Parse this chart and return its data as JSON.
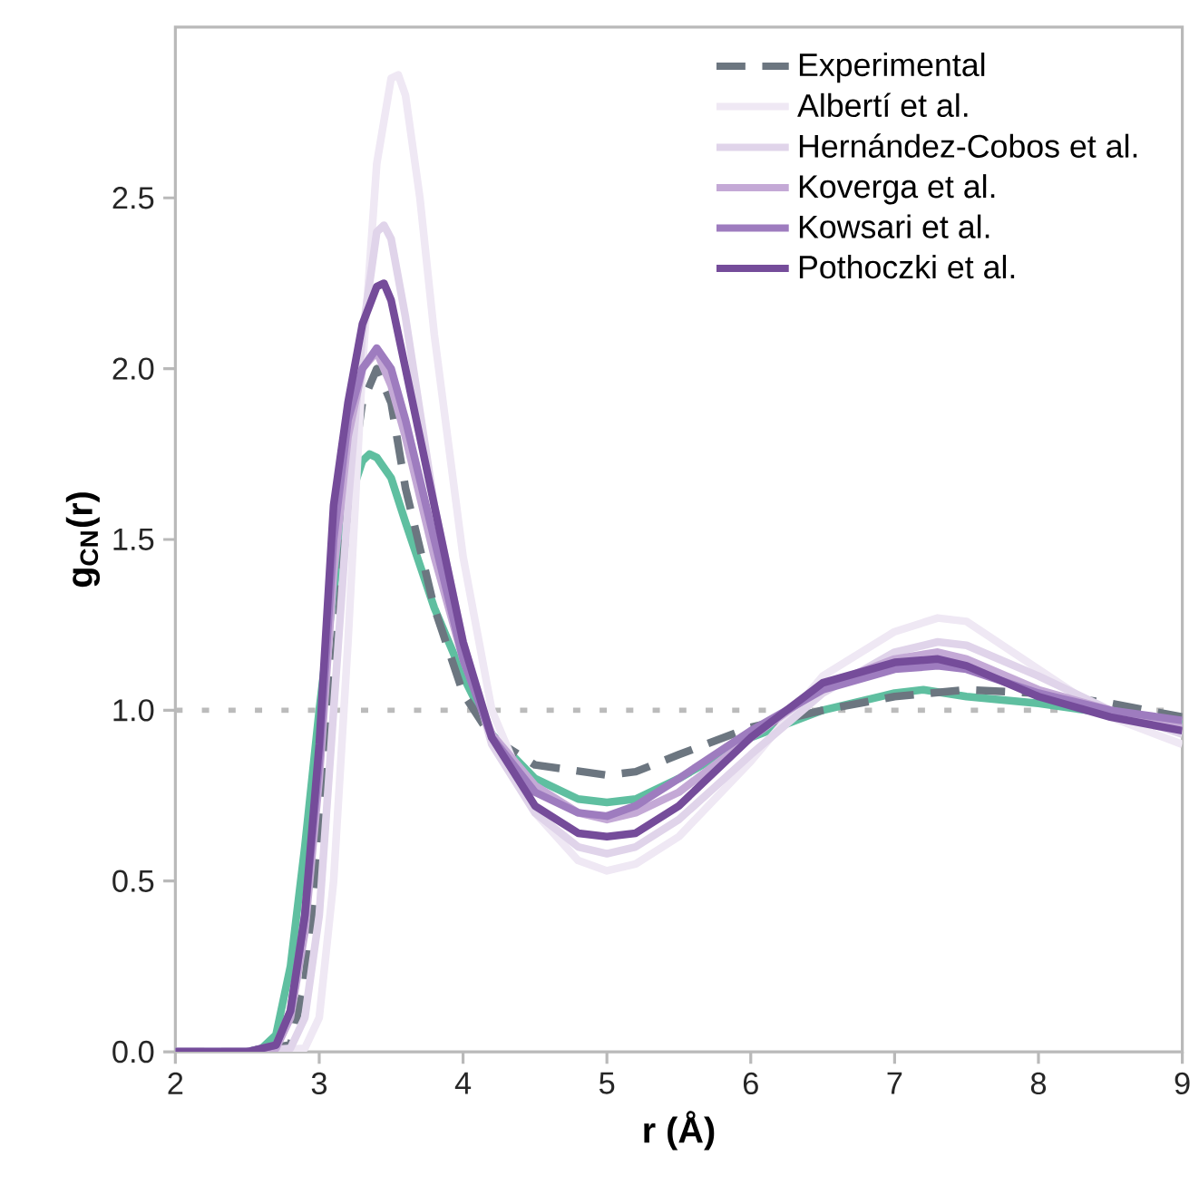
{
  "chart_data": {
    "type": "line",
    "xlabel": "**r (Å)**",
    "ylabel": "**g$_{CN}$(r)**",
    "xlim": [
      2,
      9
    ],
    "ylim": [
      0,
      3.0
    ],
    "xticks": [
      2,
      3,
      4,
      5,
      6,
      7,
      8,
      9
    ],
    "yticks": [
      {
        "value": 0,
        "label": "0.0"
      },
      0.5,
      {
        "value": 1,
        "label": "1.0"
      },
      1.5,
      {
        "value": 2,
        "label": "2.0"
      },
      2.5
    ],
    "legend": "top right",
    "grid": false,
    "line_style": "solid",
    "marker": "none",
    "ref_lines": [
      {
        "axis": "y",
        "value": 1.0,
        "color": "#bbbbbb",
        "line_style": "dotted"
      }
    ],
    "series": [
      {
        "color": "#5fbfa0",
        "x": [
          2.0,
          2.5,
          2.6,
          2.7,
          2.8,
          2.9,
          3.0,
          3.1,
          3.2,
          3.3,
          3.35,
          3.4,
          3.5,
          3.6,
          3.8,
          4.0,
          4.2,
          4.5,
          4.8,
          5.0,
          5.2,
          5.5,
          6.0,
          6.5,
          7.0,
          7.2,
          7.5,
          8.0,
          8.5,
          9.0
        ],
        "values": [
          0,
          0,
          0.01,
          0.05,
          0.25,
          0.6,
          1.0,
          1.35,
          1.6,
          1.73,
          1.75,
          1.74,
          1.68,
          1.55,
          1.3,
          1.1,
          0.93,
          0.8,
          0.74,
          0.73,
          0.74,
          0.8,
          0.92,
          1.0,
          1.05,
          1.06,
          1.04,
          1.02,
          0.99,
          0.96
        ]
      },
      {
        "name": "Experimental",
        "color": "#6c7680",
        "line_style": "dashed",
        "x": [
          2.0,
          2.5,
          2.8,
          2.9,
          3.0,
          3.1,
          3.2,
          3.3,
          3.4,
          3.5,
          3.6,
          3.8,
          4.0,
          4.2,
          4.5,
          5.0,
          5.2,
          5.5,
          6.0,
          6.5,
          7.0,
          7.5,
          8.0,
          8.5,
          9.0
        ],
        "values": [
          0,
          0,
          0.02,
          0.2,
          0.6,
          1.1,
          1.6,
          1.9,
          2.0,
          1.9,
          1.65,
          1.3,
          1.05,
          0.92,
          0.84,
          0.81,
          0.82,
          0.87,
          0.95,
          1.0,
          1.04,
          1.06,
          1.05,
          1.02,
          0.98
        ]
      },
      {
        "name": "Albertí et al.",
        "color": "#efe8f4",
        "x": [
          2.0,
          2.5,
          2.9,
          3.0,
          3.1,
          3.2,
          3.3,
          3.4,
          3.5,
          3.55,
          3.6,
          3.7,
          3.8,
          4.0,
          4.2,
          4.5,
          4.8,
          5.0,
          5.2,
          5.5,
          6.0,
          6.5,
          7.0,
          7.3,
          7.5,
          8.0,
          8.5,
          9.0
        ],
        "values": [
          0,
          0,
          0.01,
          0.1,
          0.5,
          1.2,
          2.0,
          2.6,
          2.85,
          2.86,
          2.8,
          2.5,
          2.1,
          1.45,
          1.0,
          0.7,
          0.56,
          0.53,
          0.55,
          0.63,
          0.85,
          1.1,
          1.23,
          1.27,
          1.26,
          1.12,
          0.98,
          0.9
        ]
      },
      {
        "name": "Hernández-Cobos et al.",
        "color": "#e0d4ea",
        "x": [
          2.0,
          2.5,
          2.8,
          2.9,
          3.0,
          3.1,
          3.2,
          3.3,
          3.4,
          3.45,
          3.5,
          3.6,
          3.8,
          4.0,
          4.2,
          4.5,
          4.8,
          5.0,
          5.2,
          5.5,
          6.0,
          6.5,
          7.0,
          7.3,
          7.5,
          8.0,
          8.5,
          9.0
        ],
        "values": [
          0,
          0,
          0.01,
          0.1,
          0.4,
          1.0,
          1.6,
          2.1,
          2.4,
          2.42,
          2.38,
          2.15,
          1.6,
          1.2,
          0.9,
          0.7,
          0.6,
          0.58,
          0.6,
          0.68,
          0.87,
          1.05,
          1.17,
          1.2,
          1.19,
          1.1,
          1.0,
          0.93
        ]
      },
      {
        "name": "Koverga et al.",
        "color": "#c4a9d6",
        "x": [
          2.0,
          2.5,
          2.7,
          2.8,
          2.9,
          3.0,
          3.1,
          3.2,
          3.3,
          3.4,
          3.5,
          3.6,
          3.8,
          4.0,
          4.2,
          4.5,
          4.8,
          5.0,
          5.2,
          5.5,
          6.0,
          6.5,
          7.0,
          7.3,
          7.5,
          8.0,
          8.5,
          9.0
        ],
        "values": [
          0,
          0,
          0.01,
          0.1,
          0.35,
          0.8,
          1.4,
          1.8,
          2.0,
          2.05,
          1.95,
          1.8,
          1.45,
          1.15,
          0.93,
          0.78,
          0.7,
          0.68,
          0.7,
          0.76,
          0.92,
          1.07,
          1.15,
          1.17,
          1.15,
          1.06,
          1.0,
          0.95
        ]
      },
      {
        "name": "Kowsari et al.",
        "color": "#9e7cbf",
        "x": [
          2.0,
          2.5,
          2.7,
          2.8,
          2.9,
          3.0,
          3.1,
          3.2,
          3.3,
          3.4,
          3.5,
          3.6,
          3.8,
          4.0,
          4.2,
          4.5,
          4.8,
          5.0,
          5.2,
          5.5,
          6.0,
          6.5,
          7.0,
          7.3,
          7.5,
          8.0,
          8.5,
          9.0
        ],
        "values": [
          0,
          0,
          0.02,
          0.12,
          0.4,
          0.85,
          1.5,
          1.85,
          2.0,
          2.06,
          2.0,
          1.85,
          1.5,
          1.15,
          0.92,
          0.76,
          0.7,
          0.69,
          0.72,
          0.8,
          0.94,
          1.06,
          1.12,
          1.13,
          1.12,
          1.05,
          1.0,
          0.97
        ]
      },
      {
        "name": "Pothoczki et al.",
        "color": "#754c9a",
        "x": [
          2.0,
          2.5,
          2.7,
          2.8,
          2.9,
          3.0,
          3.1,
          3.2,
          3.3,
          3.4,
          3.45,
          3.5,
          3.6,
          3.8,
          4.0,
          4.2,
          4.5,
          4.8,
          5.0,
          5.2,
          5.5,
          6.0,
          6.5,
          7.0,
          7.3,
          7.5,
          8.0,
          8.5,
          9.0
        ],
        "values": [
          0,
          0,
          0.02,
          0.12,
          0.4,
          0.9,
          1.6,
          1.9,
          2.13,
          2.24,
          2.25,
          2.2,
          2.0,
          1.6,
          1.2,
          0.92,
          0.72,
          0.64,
          0.63,
          0.64,
          0.72,
          0.92,
          1.08,
          1.14,
          1.15,
          1.13,
          1.04,
          0.98,
          0.94
        ]
      }
    ]
  }
}
